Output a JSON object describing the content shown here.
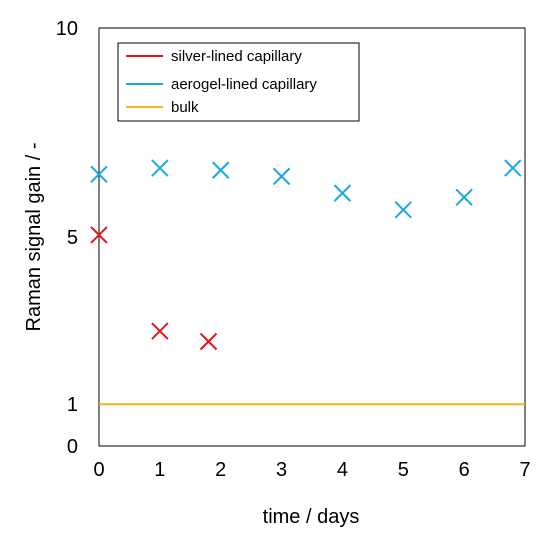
{
  "chart_data": {
    "type": "scatter",
    "xlabel": "time / days",
    "ylabel": "Raman signal gain / -",
    "xlim": [
      0,
      7
    ],
    "ylim": [
      0,
      10
    ],
    "xticks": [
      "0",
      "1",
      "2",
      "3",
      "4",
      "5",
      "6",
      "7"
    ],
    "yticks": [
      {
        "value": 0,
        "label": "0"
      },
      {
        "value": 1,
        "label": "1"
      },
      {
        "value": 5,
        "label": "5"
      },
      {
        "value": 10,
        "label": "10"
      }
    ],
    "legend_position": "top-left",
    "grid": false,
    "series": [
      {
        "name": "silver-lined capillary",
        "color": "#e3161b",
        "marker": "x",
        "points": [
          [
            0,
            5.05
          ],
          [
            1,
            2.75
          ],
          [
            1.8,
            2.5
          ]
        ]
      },
      {
        "name": "aerogel-lined capillary",
        "color": "#18a8e2",
        "marker": "x",
        "points": [
          [
            0,
            6.5
          ],
          [
            1,
            6.65
          ],
          [
            2,
            6.6
          ],
          [
            3,
            6.45
          ],
          [
            4,
            6.05
          ],
          [
            5,
            5.65
          ],
          [
            6,
            5.95
          ],
          [
            6.8,
            6.65
          ]
        ]
      },
      {
        "name": "bulk",
        "color": "#f6b31c",
        "marker": "line",
        "y": 1
      }
    ]
  }
}
